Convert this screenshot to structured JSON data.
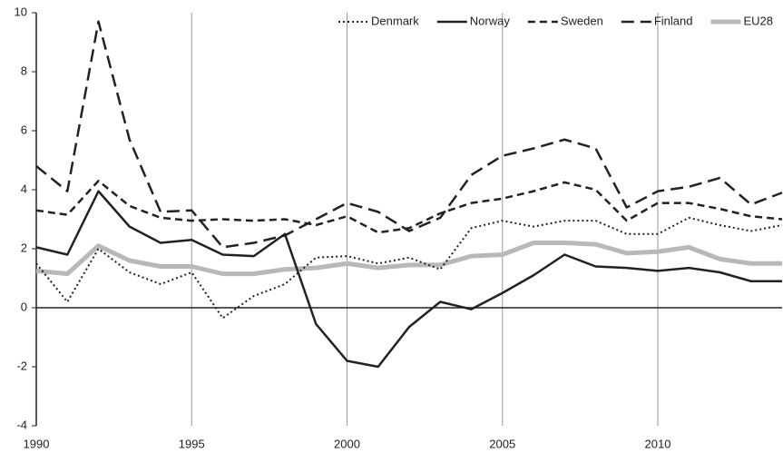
{
  "chart_data": {
    "type": "line",
    "x": [
      1990,
      1991,
      1992,
      1993,
      1994,
      1995,
      1996,
      1997,
      1998,
      1999,
      2000,
      2001,
      2002,
      2003,
      2004,
      2005,
      2006,
      2007,
      2008,
      2009,
      2010,
      2011,
      2012,
      2013,
      2014
    ],
    "xlim": [
      1990,
      2014
    ],
    "xticks": [
      1990,
      1995,
      2000,
      2005,
      2010
    ],
    "ylim": [
      -4,
      10
    ],
    "yticks": [
      -4,
      -2,
      0,
      2,
      4,
      6,
      8,
      10
    ],
    "grid": "x",
    "legend": "top-right",
    "series": [
      {
        "name": "Denmark",
        "color": "#222222",
        "dash": "dotted",
        "width": 2,
        "values": [
          1.5,
          0.2,
          2.0,
          1.2,
          0.8,
          1.2,
          -0.35,
          0.4,
          0.8,
          1.7,
          1.75,
          1.5,
          1.7,
          1.3,
          2.7,
          2.95,
          2.75,
          2.95,
          2.95,
          2.5,
          2.5,
          3.05,
          2.8,
          2.6,
          2.8
        ]
      },
      {
        "name": "Norway",
        "color": "#222222",
        "dash": "solid",
        "width": 2.5,
        "values": [
          2.05,
          1.8,
          3.95,
          2.75,
          2.2,
          2.3,
          1.8,
          1.75,
          2.5,
          -0.55,
          -1.8,
          -2.0,
          -0.65,
          0.2,
          -0.05,
          0.5,
          1.1,
          1.8,
          1.4,
          1.35,
          1.25,
          1.35,
          1.2,
          0.9,
          0.9
        ]
      },
      {
        "name": "Sweden",
        "color": "#222222",
        "dash": "short-dash",
        "width": 2.5,
        "values": [
          3.3,
          3.15,
          4.3,
          3.45,
          3.05,
          2.95,
          3.0,
          2.95,
          3.0,
          2.8,
          3.1,
          2.55,
          2.7,
          3.2,
          3.55,
          3.7,
          3.95,
          4.25,
          4.0,
          2.95,
          3.55,
          3.55,
          3.35,
          3.1,
          3.0
        ]
      },
      {
        "name": "Finland",
        "color": "#222222",
        "dash": "long-dash",
        "width": 2.5,
        "values": [
          4.8,
          3.95,
          9.7,
          5.7,
          3.25,
          3.3,
          2.05,
          2.2,
          2.45,
          3.0,
          3.55,
          3.25,
          2.6,
          3.05,
          4.5,
          5.15,
          5.4,
          5.7,
          5.4,
          3.4,
          3.95,
          4.1,
          4.4,
          3.5,
          3.9
        ]
      },
      {
        "name": "EU28",
        "color": "#b8b8b8",
        "dash": "solid",
        "width": 5,
        "values": [
          1.25,
          1.15,
          2.1,
          1.6,
          1.4,
          1.4,
          1.15,
          1.15,
          1.3,
          1.35,
          1.5,
          1.35,
          1.45,
          1.45,
          1.75,
          1.8,
          2.2,
          2.2,
          2.15,
          1.85,
          1.9,
          2.05,
          1.65,
          1.5,
          1.5
        ]
      }
    ]
  }
}
